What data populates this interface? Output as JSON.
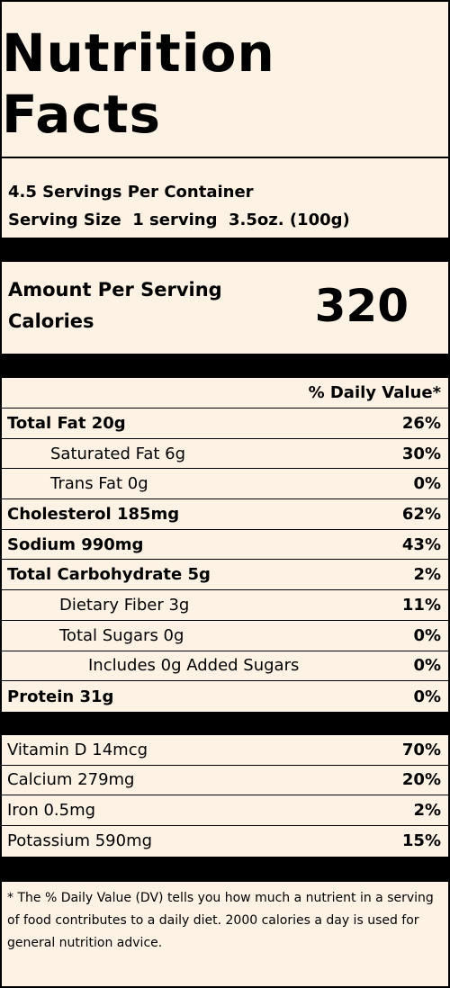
{
  "title": "Nutrition Facts",
  "servings_per_container": "4.5 Servings Per Container",
  "serving_size": "Serving Size  1 serving  3.5oz. (100g)",
  "amount_per_serving": "Amount Per Serving",
  "calories_label": "Calories",
  "calories_value": "320",
  "daily_value_header": "% Daily Value*",
  "nutrients": [
    {
      "label": "Total Fat 20g",
      "pct": "26%"
    },
    {
      "label": "Saturated Fat 6g",
      "pct": "30%"
    },
    {
      "label": "Trans Fat 0g",
      "pct": "0%"
    },
    {
      "label": "Cholesterol 185mg",
      "pct": "62%"
    },
    {
      "label": "Sodium 990mg",
      "pct": "43%"
    },
    {
      "label": "Total Carbohydrate 5g",
      "pct": "2%"
    },
    {
      "label": "Dietary Fiber 3g",
      "pct": "11%"
    },
    {
      "label": "Total Sugars 0g",
      "pct": "0%"
    },
    {
      "label": "Includes 0g Added Sugars",
      "pct": "0%"
    },
    {
      "label": "Protein 31g",
      "pct": "0%"
    }
  ],
  "vitamins": [
    {
      "label": "Vitamin D 14mcg",
      "pct": "70%"
    },
    {
      "label": "Calcium 279mg",
      "pct": "20%"
    },
    {
      "label": "Iron 0.5mg",
      "pct": "2%"
    },
    {
      "label": "Potassium 590mg",
      "pct": "15%"
    }
  ],
  "footnote": "* The % Daily Value (DV) tells you how much a nutrient in a serving of food contributes to a daily diet. 2000 calories a day is used for general nutrition advice."
}
